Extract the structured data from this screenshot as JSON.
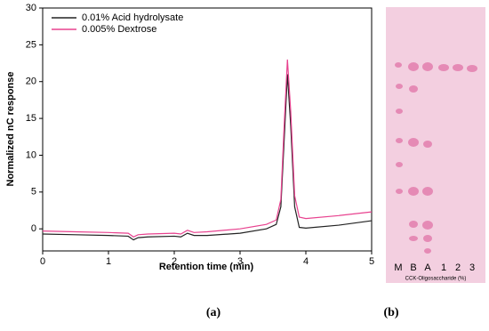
{
  "chart_data": {
    "type": "line",
    "xlabel": "Retention time (min)",
    "ylabel": "Normalized nC response",
    "x": [
      0,
      0.5,
      1.0,
      1.3,
      1.38,
      1.45,
      1.6,
      2.0,
      2.1,
      2.2,
      2.3,
      2.5,
      3.0,
      3.4,
      3.55,
      3.62,
      3.67,
      3.72,
      3.77,
      3.83,
      3.9,
      4.0,
      4.5,
      5.0
    ],
    "series": [
      {
        "name": "0.01% Acid hydrolysate",
        "color": "#222222",
        "values": [
          -0.7,
          -0.8,
          -0.9,
          -1.0,
          -1.5,
          -1.2,
          -1.1,
          -1.0,
          -1.1,
          -0.6,
          -0.9,
          -0.9,
          -0.6,
          0,
          0.6,
          3,
          12,
          21,
          14,
          3,
          0.2,
          0.1,
          0.5,
          1.1
        ]
      },
      {
        "name": "0.005% Dextrose",
        "color": "#e8428f",
        "values": [
          -0.3,
          -0.4,
          -0.5,
          -0.6,
          -1.1,
          -0.8,
          -0.7,
          -0.6,
          -0.7,
          -0.2,
          -0.5,
          -0.4,
          0,
          0.6,
          1.2,
          4,
          14,
          23,
          16,
          4.5,
          1.6,
          1.4,
          1.8,
          2.3
        ]
      }
    ],
    "xlim": [
      0,
      5
    ],
    "xticks": [
      0,
      1,
      2,
      3,
      4,
      5
    ],
    "ylim": [
      -3,
      30
    ],
    "yticks": [
      0,
      5,
      10,
      15,
      20,
      25,
      30
    ],
    "legend": "upper-left"
  },
  "plate": {
    "lanes": [
      "M",
      "B",
      "A",
      "1",
      "2",
      "3"
    ],
    "caption": "CCK-Oligosaccharide (%)"
  },
  "captions": [
    "(a)",
    "(b)"
  ]
}
